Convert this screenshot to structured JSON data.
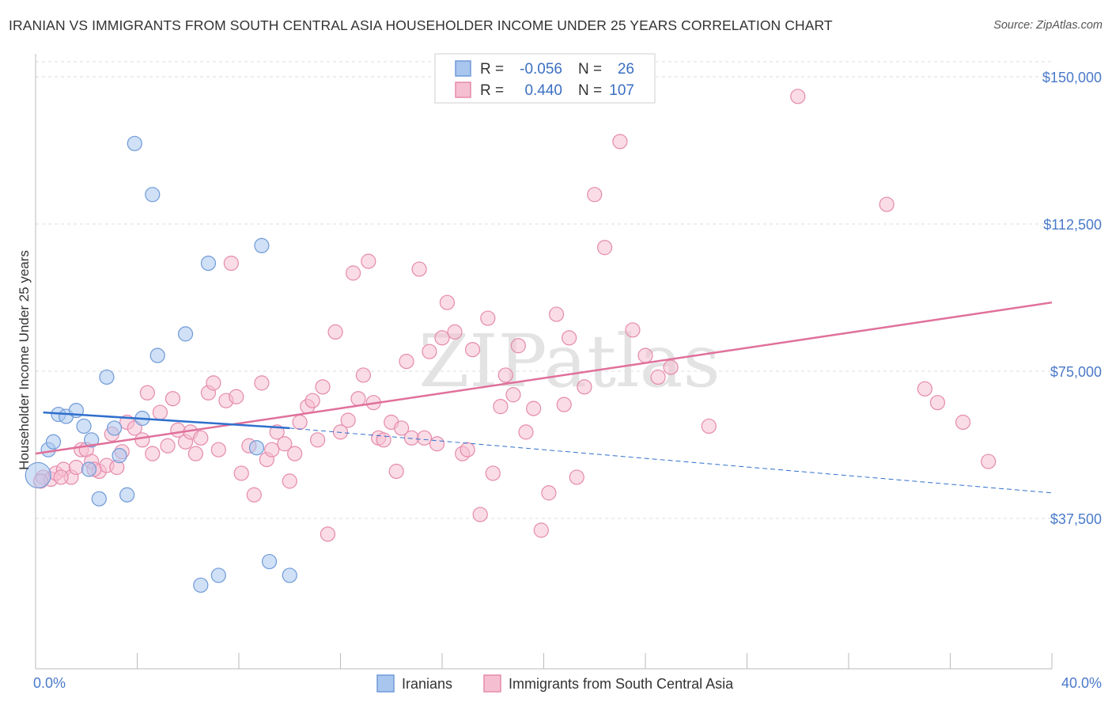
{
  "title": "IRANIAN VS IMMIGRANTS FROM SOUTH CENTRAL ASIA HOUSEHOLDER INCOME UNDER 25 YEARS CORRELATION CHART",
  "source": "Source: ZipAtlas.com",
  "watermark": "ZIPatlas",
  "colors": {
    "blue_fill": "#a9c6ee",
    "blue_stroke": "#6f9ad8",
    "blue_line": "#2f6fcc",
    "pink_fill": "#f5bfd1",
    "pink_stroke": "#e58aab",
    "pink_line": "#e0709a",
    "tick_label": "#4a7ac9",
    "grid": "#dddddd"
  },
  "legend": {
    "rows": [
      {
        "r_label": "R =",
        "r_value": "-0.056",
        "n_label": "N =",
        "n_value": "26"
      },
      {
        "r_label": "R =",
        "r_value": "0.440",
        "n_label": "N =",
        "n_value": "107"
      }
    ]
  },
  "chart_data": {
    "type": "scatter",
    "xlabel": "",
    "ylabel": "Householder Income Under 25 years",
    "xlim": [
      0,
      40
    ],
    "ylim": [
      0,
      157500
    ],
    "x_ticks": [
      "0.0%",
      "40.0%"
    ],
    "y_ticks": [
      {
        "value": 37500,
        "label": "$37,500"
      },
      {
        "value": 75000,
        "label": "$75,000"
      },
      {
        "value": 112500,
        "label": "$112,500"
      },
      {
        "value": 150000,
        "label": "$150,000"
      }
    ],
    "grid": "horizontal dashed",
    "legend_position": "top-center",
    "series": [
      {
        "name": "Iranians",
        "r": -0.056,
        "n": 26,
        "trend": {
          "x0": 0.3,
          "y0": 64500,
          "x1": 10.0,
          "y1": 60500,
          "dashed_to_x": 40,
          "dashed_to_y": 44000
        },
        "points": [
          [
            0.1,
            48500
          ],
          [
            0.5,
            55000
          ],
          [
            0.7,
            57000
          ],
          [
            0.9,
            64000
          ],
          [
            1.2,
            63500
          ],
          [
            1.6,
            65000
          ],
          [
            1.9,
            61000
          ],
          [
            2.1,
            50000
          ],
          [
            2.2,
            57500
          ],
          [
            2.5,
            42500
          ],
          [
            2.8,
            73500
          ],
          [
            3.1,
            60500
          ],
          [
            3.3,
            53500
          ],
          [
            3.6,
            43500
          ],
          [
            3.9,
            133000
          ],
          [
            4.2,
            63000
          ],
          [
            4.6,
            120000
          ],
          [
            4.8,
            79000
          ],
          [
            5.9,
            84500
          ],
          [
            6.5,
            20500
          ],
          [
            6.8,
            102500
          ],
          [
            7.2,
            23000
          ],
          [
            8.7,
            55500
          ],
          [
            8.9,
            107000
          ],
          [
            9.2,
            26500
          ],
          [
            10.0,
            23000
          ]
        ]
      },
      {
        "name": "Immigrants from South Central Asia",
        "r": 0.44,
        "n": 107,
        "trend": {
          "x0": 0,
          "y0": 54000,
          "x1": 40,
          "y1": 92500
        },
        "points": [
          [
            0.3,
            48000
          ],
          [
            0.6,
            47500
          ],
          [
            0.8,
            49000
          ],
          [
            1.1,
            50000
          ],
          [
            1.4,
            48000
          ],
          [
            1.6,
            50500
          ],
          [
            1.8,
            55000
          ],
          [
            2.0,
            55000
          ],
          [
            2.2,
            52000
          ],
          [
            2.5,
            49500
          ],
          [
            2.8,
            51000
          ],
          [
            3.0,
            59000
          ],
          [
            3.2,
            50500
          ],
          [
            3.4,
            54500
          ],
          [
            3.6,
            62000
          ],
          [
            3.9,
            60500
          ],
          [
            4.2,
            57500
          ],
          [
            4.4,
            69500
          ],
          [
            4.6,
            54000
          ],
          [
            4.9,
            64500
          ],
          [
            5.2,
            56000
          ],
          [
            5.4,
            68000
          ],
          [
            5.6,
            60000
          ],
          [
            5.9,
            57000
          ],
          [
            6.1,
            59500
          ],
          [
            6.3,
            54000
          ],
          [
            6.5,
            58000
          ],
          [
            6.8,
            69500
          ],
          [
            7.0,
            72000
          ],
          [
            7.2,
            55000
          ],
          [
            7.5,
            67500
          ],
          [
            7.7,
            102500
          ],
          [
            7.9,
            68500
          ],
          [
            8.1,
            49000
          ],
          [
            8.4,
            56000
          ],
          [
            8.6,
            43500
          ],
          [
            8.9,
            72000
          ],
          [
            9.1,
            52500
          ],
          [
            9.3,
            55000
          ],
          [
            9.5,
            59500
          ],
          [
            9.8,
            56500
          ],
          [
            10.0,
            47000
          ],
          [
            10.2,
            54000
          ],
          [
            10.4,
            62000
          ],
          [
            10.7,
            66000
          ],
          [
            10.9,
            67500
          ],
          [
            11.1,
            57500
          ],
          [
            11.3,
            71000
          ],
          [
            11.5,
            33500
          ],
          [
            11.8,
            85000
          ],
          [
            12.0,
            59500
          ],
          [
            12.3,
            62500
          ],
          [
            12.5,
            100000
          ],
          [
            12.7,
            68000
          ],
          [
            12.9,
            74000
          ],
          [
            13.1,
            103000
          ],
          [
            13.3,
            67000
          ],
          [
            13.5,
            58000
          ],
          [
            13.7,
            57500
          ],
          [
            14.0,
            62000
          ],
          [
            14.2,
            49500
          ],
          [
            14.4,
            60500
          ],
          [
            14.6,
            77500
          ],
          [
            14.8,
            58000
          ],
          [
            15.1,
            101000
          ],
          [
            15.3,
            58000
          ],
          [
            15.5,
            80000
          ],
          [
            15.8,
            56500
          ],
          [
            16.0,
            83500
          ],
          [
            16.2,
            92500
          ],
          [
            16.5,
            85000
          ],
          [
            16.8,
            54000
          ],
          [
            17.0,
            55000
          ],
          [
            17.2,
            80500
          ],
          [
            17.5,
            38500
          ],
          [
            17.8,
            88500
          ],
          [
            18.0,
            49000
          ],
          [
            18.3,
            66000
          ],
          [
            18.5,
            74000
          ],
          [
            18.8,
            69000
          ],
          [
            19.0,
            81500
          ],
          [
            19.3,
            59500
          ],
          [
            19.6,
            65500
          ],
          [
            19.9,
            34500
          ],
          [
            20.2,
            44000
          ],
          [
            20.5,
            89500
          ],
          [
            20.8,
            66500
          ],
          [
            21.0,
            83500
          ],
          [
            21.3,
            48000
          ],
          [
            21.6,
            71000
          ],
          [
            22.0,
            120000
          ],
          [
            22.4,
            106500
          ],
          [
            23.0,
            133500
          ],
          [
            23.5,
            85500
          ],
          [
            24.0,
            79000
          ],
          [
            24.5,
            73500
          ],
          [
            25.0,
            76000
          ],
          [
            26.5,
            61000
          ],
          [
            30.0,
            145000
          ],
          [
            33.5,
            117500
          ],
          [
            35.0,
            70500
          ],
          [
            35.5,
            67000
          ],
          [
            36.5,
            62000
          ],
          [
            37.5,
            52000
          ],
          [
            0.2,
            47000
          ],
          [
            1.0,
            48000
          ],
          [
            2.3,
            50000
          ]
        ]
      }
    ]
  },
  "bottom_legend": [
    {
      "label": "Iranians"
    },
    {
      "label": "Immigrants from South Central Asia"
    }
  ]
}
